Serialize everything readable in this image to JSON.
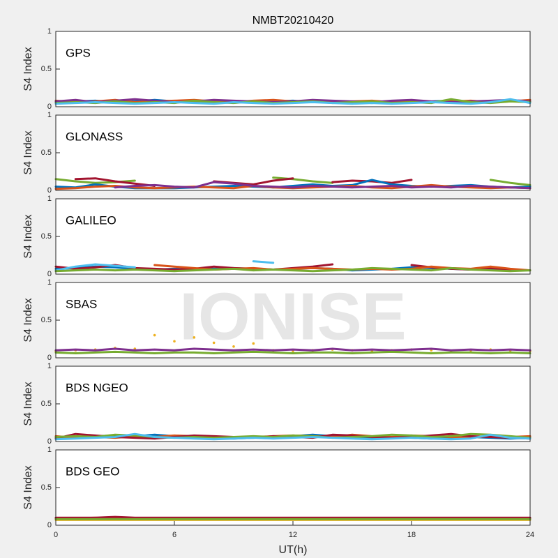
{
  "chart_data": [
    {
      "type": "line",
      "title": "NMBT20210420",
      "annotation": "GPS",
      "ylabel": "S4 Index",
      "xlim": [
        0,
        24
      ],
      "ylim": [
        0,
        1
      ],
      "yticks": [
        0,
        0.5,
        1
      ],
      "x": [
        0,
        1,
        2,
        3,
        4,
        5,
        6,
        7,
        8,
        9,
        10,
        11,
        12,
        13,
        14,
        15,
        16,
        17,
        18,
        19,
        20,
        21,
        22,
        23,
        24
      ],
      "series": [
        {
          "color": "#0072BD",
          "values": [
            0.06,
            0.07,
            0.08,
            0.06,
            0.07,
            0.09,
            0.07,
            0.06,
            0.08,
            0.07,
            0.06,
            0.07,
            0.08,
            0.06,
            0.07,
            0.06,
            0.05,
            0.07,
            0.06,
            0.07,
            0.08,
            0.06,
            0.07,
            0.08,
            0.06
          ]
        },
        {
          "color": "#D95319",
          "values": [
            0.08,
            0.06,
            0.07,
            0.09,
            0.06,
            0.07,
            0.08,
            0.09,
            0.07,
            0.06,
            0.08,
            0.09,
            0.07,
            0.08,
            0.06,
            0.07,
            0.08,
            0.06,
            0.07,
            0.06,
            0.07,
            0.08,
            0.06,
            0.07,
            0.09
          ]
        },
        {
          "color": "#7E2F8E",
          "values": [
            0.07,
            0.09,
            0.06,
            0.08,
            0.1,
            0.08,
            0.06,
            0.07,
            0.09,
            0.08,
            0.07,
            0.06,
            0.07,
            0.09,
            0.08,
            0.07,
            0.06,
            0.08,
            0.09,
            0.07,
            0.06,
            0.07,
            0.08,
            0.09,
            0.07
          ]
        },
        {
          "color": "#77AC30",
          "values": [
            0.05,
            0.06,
            0.05,
            0.07,
            0.05,
            0.06,
            0.05,
            0.08,
            0.06,
            0.05,
            0.07,
            0.05,
            0.06,
            0.07,
            0.05,
            0.06,
            0.07,
            0.05,
            0.06,
            0.05,
            0.1,
            0.06,
            0.05,
            0.07,
            0.06
          ]
        },
        {
          "color": "#4DBEEE",
          "values": [
            0.04,
            0.05,
            0.06,
            0.05,
            0.04,
            0.05,
            0.06,
            0.05,
            0.04,
            0.06,
            0.05,
            0.04,
            0.05,
            0.06,
            0.05,
            0.04,
            0.05,
            0.04,
            0.05,
            0.06,
            0.05,
            0.04,
            0.06,
            0.1,
            0.05
          ]
        }
      ]
    },
    {
      "type": "line",
      "annotation": "GLONASS",
      "ylabel": "S4 Index",
      "xlim": [
        0,
        24
      ],
      "ylim": [
        0,
        1
      ],
      "yticks": [
        0,
        0.5,
        1
      ],
      "x": [
        0,
        1,
        2,
        3,
        4,
        5,
        6,
        7,
        8,
        9,
        10,
        11,
        12,
        13,
        14,
        15,
        16,
        17,
        18,
        19,
        20,
        21,
        22,
        23,
        24
      ],
      "series": [
        {
          "color": "#77AC30",
          "values": [
            0.15,
            0.12,
            0.1,
            0.11,
            0.13,
            null,
            null,
            null,
            null,
            null,
            null,
            0.17,
            0.15,
            0.12,
            0.1,
            null,
            null,
            null,
            null,
            null,
            null,
            null,
            0.14,
            0.1,
            0.07
          ]
        },
        {
          "color": "#A2142F",
          "values": [
            null,
            0.15,
            0.16,
            0.12,
            0.09,
            0.06,
            null,
            null,
            0.12,
            0.1,
            0.08,
            0.13,
            0.16,
            null,
            0.11,
            0.13,
            0.12,
            0.1,
            0.14,
            null,
            null,
            null,
            null,
            null,
            null
          ]
        },
        {
          "color": "#0072BD",
          "values": [
            0.05,
            0.04,
            0.08,
            0.05,
            0.03,
            0.03,
            0.03,
            0.04,
            0.05,
            0.06,
            0.05,
            0.04,
            0.06,
            0.08,
            0.06,
            0.07,
            0.14,
            0.08,
            0.06,
            0.05,
            0.06,
            0.07,
            0.05,
            0.04,
            0.05
          ]
        },
        {
          "color": "#D95319",
          "values": [
            0.02,
            0.03,
            0.05,
            0.06,
            0.04,
            0.03,
            0.04,
            0.05,
            0.04,
            0.03,
            0.06,
            0.04,
            0.03,
            0.04,
            0.05,
            0.06,
            0.04,
            0.03,
            0.05,
            0.07,
            0.05,
            0.04,
            0.03,
            0.04,
            0.03
          ]
        },
        {
          "color": "#7E2F8E",
          "values": [
            null,
            null,
            null,
            0.04,
            0.06,
            0.07,
            0.05,
            0.04,
            0.11,
            0.09,
            0.06,
            0.05,
            0.04,
            0.06,
            0.05,
            0.04,
            0.05,
            0.06,
            0.04,
            0.05,
            0.04,
            0.06,
            0.05,
            0.04,
            0.03
          ]
        }
      ]
    },
    {
      "type": "line",
      "annotation": "GALILEO",
      "ylabel": "S4 Index",
      "xlim": [
        0,
        24
      ],
      "ylim": [
        0,
        1
      ],
      "yticks": [
        0,
        0.5,
        1
      ],
      "x": [
        0,
        1,
        2,
        3,
        4,
        5,
        6,
        7,
        8,
        9,
        10,
        11,
        12,
        13,
        14,
        15,
        16,
        17,
        18,
        19,
        20,
        21,
        22,
        23,
        24
      ],
      "series": [
        {
          "color": "#0072BD",
          "values": [
            0.07,
            0.08,
            0.1,
            0.09,
            0.07,
            0.06,
            0.07,
            0.06,
            0.07,
            0.08,
            0.07,
            0.06,
            0.07,
            0.08,
            0.07,
            0.05,
            0.06,
            0.07,
            0.09,
            0.08,
            0.07,
            0.06,
            0.07,
            0.06,
            0.05
          ]
        },
        {
          "color": "#A2142F",
          "values": [
            0.1,
            0.07,
            0.09,
            0.12,
            0.08,
            0.07,
            0.06,
            0.07,
            0.1,
            0.08,
            0.07,
            0.06,
            0.08,
            0.1,
            0.13,
            null,
            null,
            null,
            0.12,
            0.09,
            0.07,
            0.06,
            0.08,
            0.06,
            null
          ]
        },
        {
          "color": "#4DBEEE",
          "values": [
            0.05,
            0.1,
            0.13,
            0.11,
            0.09,
            null,
            null,
            null,
            null,
            null,
            0.17,
            0.15,
            null,
            null,
            null,
            null,
            null,
            null,
            null,
            null,
            null,
            null,
            null,
            null,
            null
          ]
        },
        {
          "color": "#D95319",
          "values": [
            null,
            null,
            null,
            null,
            null,
            0.12,
            0.1,
            0.08,
            0.06,
            0.07,
            0.08,
            0.06,
            0.07,
            0.08,
            0.07,
            0.06,
            0.07,
            0.06,
            0.07,
            0.1,
            0.08,
            0.07,
            0.1,
            0.07,
            0.05
          ]
        },
        {
          "color": "#77AC30",
          "values": [
            0.04,
            0.05,
            0.06,
            0.05,
            0.06,
            0.05,
            0.04,
            0.05,
            0.06,
            0.07,
            0.05,
            0.06,
            0.05,
            0.04,
            0.05,
            0.06,
            0.08,
            0.07,
            0.06,
            0.05,
            0.08,
            0.06,
            0.05,
            0.04,
            0.05
          ]
        }
      ]
    },
    {
      "type": "line",
      "annotation": "SBAS",
      "ylabel": "S4 Index",
      "watermark": "IONISE",
      "xlim": [
        0,
        24
      ],
      "ylim": [
        0,
        1
      ],
      "yticks": [
        0,
        0.5,
        1
      ],
      "x": [
        0,
        1,
        2,
        3,
        4,
        5,
        6,
        7,
        8,
        9,
        10,
        11,
        12,
        13,
        14,
        15,
        16,
        17,
        18,
        19,
        20,
        21,
        22,
        23,
        24
      ],
      "series": [
        {
          "color": "#EDB120",
          "marker": "dot",
          "values": [
            0.09,
            0.1,
            0.11,
            0.13,
            0.12,
            0.3,
            0.22,
            0.27,
            0.2,
            0.15,
            0.19,
            0.1,
            0.09,
            0.1,
            0.11,
            0.1,
            0.09,
            0.1,
            0.11,
            0.1,
            0.09,
            0.1,
            0.11,
            0.1,
            0.09
          ]
        },
        {
          "color": "#7E2F8E",
          "values": [
            0.1,
            0.11,
            0.1,
            0.12,
            0.1,
            0.11,
            0.1,
            0.12,
            0.11,
            0.1,
            0.11,
            0.1,
            0.11,
            0.1,
            0.12,
            0.1,
            0.11,
            0.1,
            0.11,
            0.12,
            0.1,
            0.11,
            0.1,
            0.11,
            0.1
          ]
        },
        {
          "color": "#77AC30",
          "values": [
            0.07,
            0.06,
            0.07,
            0.08,
            0.07,
            0.06,
            0.07,
            0.07,
            0.06,
            0.07,
            0.08,
            0.07,
            0.06,
            0.07,
            0.07,
            0.06,
            0.07,
            0.08,
            0.07,
            0.06,
            0.07,
            0.07,
            0.06,
            0.07,
            0.06
          ]
        }
      ]
    },
    {
      "type": "line",
      "annotation": "BDS NGEO",
      "ylabel": "S4 Index",
      "xlim": [
        0,
        24
      ],
      "ylim": [
        0,
        1
      ],
      "yticks": [
        0,
        0.5,
        1
      ],
      "x": [
        0,
        1,
        2,
        3,
        4,
        5,
        6,
        7,
        8,
        9,
        10,
        11,
        12,
        13,
        14,
        15,
        16,
        17,
        18,
        19,
        20,
        21,
        22,
        23,
        24
      ],
      "series": [
        {
          "color": "#0072BD",
          "values": [
            0.05,
            0.06,
            0.07,
            0.08,
            0.07,
            0.09,
            0.07,
            0.06,
            0.05,
            0.04,
            0.05,
            0.06,
            0.07,
            0.09,
            0.07,
            0.06,
            0.05,
            0.06,
            0.05,
            0.04,
            0.05,
            0.06,
            0.05,
            0.04,
            0.05
          ]
        },
        {
          "color": "#D95319",
          "values": [
            0.07,
            0.05,
            0.06,
            0.05,
            0.07,
            0.06,
            0.08,
            0.07,
            0.06,
            0.05,
            0.06,
            0.07,
            0.08,
            0.07,
            0.06,
            0.09,
            0.07,
            0.06,
            0.08,
            0.07,
            0.06,
            0.05,
            0.07,
            0.06,
            0.07
          ]
        },
        {
          "color": "#A2142F",
          "values": [
            0.04,
            0.1,
            0.08,
            0.06,
            0.05,
            0.04,
            0.06,
            0.08,
            0.07,
            0.06,
            0.05,
            0.07,
            0.06,
            0.05,
            0.09,
            0.08,
            0.06,
            0.05,
            0.06,
            0.08,
            0.1,
            0.07,
            0.06,
            0.05,
            0.04
          ]
        },
        {
          "color": "#77AC30",
          "values": [
            0.06,
            0.07,
            0.06,
            0.09,
            0.08,
            0.06,
            0.05,
            0.06,
            0.05,
            0.06,
            0.07,
            0.06,
            0.08,
            0.07,
            0.05,
            0.06,
            0.07,
            0.09,
            0.08,
            0.06,
            0.07,
            0.1,
            0.09,
            0.07,
            0.05
          ]
        },
        {
          "color": "#4DBEEE",
          "values": [
            0.03,
            0.04,
            0.05,
            0.06,
            0.1,
            0.06,
            0.05,
            0.04,
            0.03,
            0.04,
            0.05,
            0.04,
            0.05,
            0.06,
            0.05,
            0.04,
            0.03,
            0.04,
            0.05,
            0.04,
            0.03,
            0.04,
            0.09,
            0.05,
            0.04
          ]
        }
      ]
    },
    {
      "type": "line",
      "annotation": "BDS GEO",
      "ylabel": "S4 Index",
      "xlabel": "UT(h)",
      "xlim": [
        0,
        24
      ],
      "ylim": [
        0,
        1
      ],
      "yticks": [
        0,
        0.5,
        1
      ],
      "xticks": [
        0,
        6,
        12,
        18,
        24
      ],
      "x": [
        0,
        1,
        2,
        3,
        4,
        5,
        6,
        7,
        8,
        9,
        10,
        11,
        12,
        13,
        14,
        15,
        16,
        17,
        18,
        19,
        20,
        21,
        22,
        23,
        24
      ],
      "series": [
        {
          "color": "#D95319",
          "values": [
            0.09,
            0.09,
            0.1,
            0.09,
            0.09,
            0.09,
            0.09,
            0.09,
            0.09,
            0.09,
            0.09,
            0.09,
            0.09,
            0.09,
            0.09,
            0.09,
            0.09,
            0.09,
            0.09,
            0.09,
            0.09,
            0.09,
            0.09,
            0.09,
            0.09
          ]
        },
        {
          "color": "#EDB120",
          "values": [
            0.07,
            0.07,
            0.07,
            0.07,
            0.07,
            0.07,
            0.07,
            0.07,
            0.07,
            0.07,
            0.07,
            0.07,
            0.07,
            0.07,
            0.07,
            0.07,
            0.07,
            0.07,
            0.07,
            0.07,
            0.07,
            0.07,
            0.07,
            0.07,
            0.07
          ]
        },
        {
          "color": "#A2142F",
          "values": [
            0.1,
            0.1,
            0.1,
            0.11,
            0.1,
            0.1,
            0.1,
            0.1,
            0.1,
            0.1,
            0.1,
            0.1,
            0.1,
            0.1,
            0.1,
            0.1,
            0.1,
            0.1,
            0.1,
            0.1,
            0.1,
            0.1,
            0.1,
            0.1,
            0.1
          ]
        },
        {
          "color": "#77AC30",
          "values": [
            0.08,
            0.08,
            0.08,
            0.08,
            0.08,
            0.08,
            0.08,
            0.08,
            0.08,
            0.08,
            0.08,
            0.08,
            0.08,
            0.08,
            0.08,
            0.08,
            0.08,
            0.08,
            0.08,
            0.08,
            0.08,
            0.08,
            0.08,
            0.08,
            0.08
          ]
        }
      ]
    }
  ]
}
